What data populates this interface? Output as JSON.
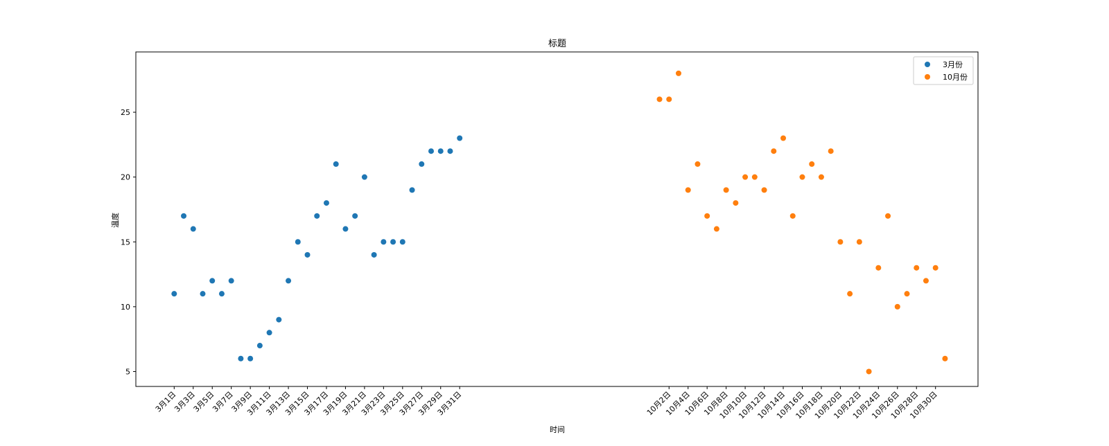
{
  "chart_data": {
    "type": "scatter",
    "title": "标题",
    "xlabel": "时间",
    "ylabel": "温度",
    "ylim": [
      3.85,
      29.65
    ],
    "yticks": [
      5,
      10,
      15,
      20,
      25
    ],
    "grid": false,
    "legend_position": "top-right",
    "series": [
      {
        "name": "3月份",
        "color": "#1f77b4",
        "x": [
          "3月1日",
          "3月2日",
          "3月3日",
          "3月4日",
          "3月5日",
          "3月6日",
          "3月7日",
          "3月8日",
          "3月9日",
          "3月10日",
          "3月11日",
          "3月12日",
          "3月13日",
          "3月14日",
          "3月15日",
          "3月16日",
          "3月17日",
          "3月18日",
          "3月19日",
          "3月20日",
          "3月21日",
          "3月22日",
          "3月23日",
          "3月24日",
          "3月25日",
          "3月26日",
          "3月27日",
          "3月28日",
          "3月29日",
          "3月30日",
          "3月31日"
        ],
        "y": [
          11,
          17,
          16,
          11,
          12,
          11,
          12,
          6,
          6,
          7,
          8,
          9,
          12,
          15,
          14,
          17,
          18,
          21,
          16,
          17,
          20,
          14,
          15,
          15,
          15,
          19,
          21,
          22,
          22,
          22,
          23
        ]
      },
      {
        "name": "10月份",
        "color": "#ff7f0e",
        "x": [
          "10月1日",
          "10月2日",
          "10月3日",
          "10月4日",
          "10月5日",
          "10月6日",
          "10月7日",
          "10月8日",
          "10月9日",
          "10月10日",
          "10月11日",
          "10月12日",
          "10月13日",
          "10月14日",
          "10月15日",
          "10月16日",
          "10月17日",
          "10月18日",
          "10月19日",
          "10月20日",
          "10月21日",
          "10月22日",
          "10月23日",
          "10月24日",
          "10月25日",
          "10月26日",
          "10月27日",
          "10月28日",
          "10月29日",
          "10月30日",
          "10月31日"
        ],
        "y": [
          26,
          26,
          28,
          19,
          21,
          17,
          16,
          19,
          18,
          20,
          20,
          19,
          22,
          23,
          17,
          20,
          21,
          20,
          22,
          15,
          11,
          15,
          5,
          13,
          17,
          10,
          11,
          13,
          12,
          13,
          6
        ]
      }
    ],
    "xtick_labels": [
      "3月1日",
      "3月3日",
      "3月5日",
      "3月7日",
      "3月9日",
      "3月11日",
      "3月13日",
      "3月15日",
      "3月17日",
      "3月19日",
      "3月21日",
      "3月23日",
      "3月25日",
      "3月27日",
      "3月29日",
      "3月31日",
      "10月2日",
      "10月4日",
      "10月6日",
      "10月8日",
      "10月10日",
      "10月12日",
      "10月14日",
      "10月16日",
      "10月18日",
      "10月20日",
      "10月22日",
      "10月24日",
      "10月26日",
      "10月28日",
      "10月30日"
    ]
  }
}
